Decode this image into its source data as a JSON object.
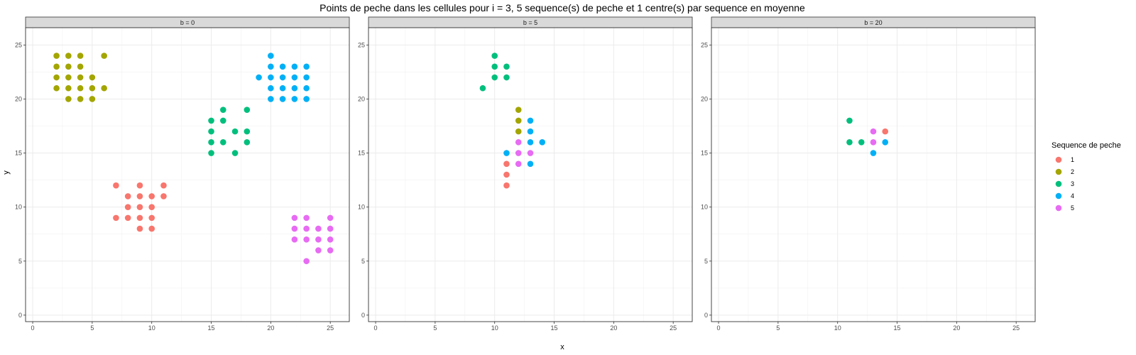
{
  "chart_data": {
    "type": "scatter",
    "title": "Points de peche dans les cellules pour i = 3, 5 sequence(s) de peche et 1 centre(s) par sequence en moyenne",
    "xlabel": "x",
    "ylabel": "y",
    "xlim": [
      -0.6,
      26.6
    ],
    "ylim": [
      -0.6,
      26.6
    ],
    "x_ticks": [
      0,
      5,
      10,
      15,
      20,
      25
    ],
    "y_ticks": [
      0,
      5,
      10,
      15,
      20,
      25
    ],
    "grid": true,
    "legend": {
      "title": "Sequence de peche",
      "position": "right",
      "entries": [
        {
          "label": "1",
          "color": "#F8766D"
        },
        {
          "label": "2",
          "color": "#A3A500"
        },
        {
          "label": "3",
          "color": "#00BF7D"
        },
        {
          "label": "4",
          "color": "#00B0F6"
        },
        {
          "label": "5",
          "color": "#E76BF3"
        }
      ]
    },
    "panels": [
      {
        "label": "b = 0",
        "series": [
          {
            "name": "1",
            "points": [
              [
                7,
                12
              ],
              [
                9,
                12
              ],
              [
                11,
                12
              ],
              [
                8,
                11
              ],
              [
                9,
                11
              ],
              [
                10,
                11
              ],
              [
                11,
                11
              ],
              [
                8,
                10
              ],
              [
                9,
                10
              ],
              [
                10,
                10
              ],
              [
                7,
                9
              ],
              [
                8,
                9
              ],
              [
                9,
                9
              ],
              [
                10,
                9
              ],
              [
                9,
                8
              ],
              [
                10,
                8
              ]
            ]
          },
          {
            "name": "2",
            "points": [
              [
                2,
                24
              ],
              [
                3,
                24
              ],
              [
                4,
                24
              ],
              [
                6,
                24
              ],
              [
                2,
                23
              ],
              [
                3,
                23
              ],
              [
                4,
                23
              ],
              [
                2,
                22
              ],
              [
                3,
                22
              ],
              [
                4,
                22
              ],
              [
                5,
                22
              ],
              [
                2,
                21
              ],
              [
                3,
                21
              ],
              [
                4,
                21
              ],
              [
                5,
                21
              ],
              [
                6,
                21
              ],
              [
                3,
                20
              ],
              [
                4,
                20
              ],
              [
                5,
                20
              ]
            ]
          },
          {
            "name": "3",
            "points": [
              [
                16,
                19
              ],
              [
                18,
                19
              ],
              [
                15,
                18
              ],
              [
                16,
                18
              ],
              [
                15,
                17
              ],
              [
                17,
                17
              ],
              [
                18,
                17
              ],
              [
                15,
                16
              ],
              [
                16,
                16
              ],
              [
                18,
                16
              ],
              [
                15,
                15
              ],
              [
                17,
                15
              ]
            ]
          },
          {
            "name": "4",
            "points": [
              [
                20,
                24
              ],
              [
                20,
                23
              ],
              [
                21,
                23
              ],
              [
                22,
                23
              ],
              [
                23,
                23
              ],
              [
                19,
                22
              ],
              [
                20,
                22
              ],
              [
                21,
                22
              ],
              [
                22,
                22
              ],
              [
                23,
                22
              ],
              [
                20,
                21
              ],
              [
                21,
                21
              ],
              [
                22,
                21
              ],
              [
                23,
                21
              ],
              [
                20,
                20
              ],
              [
                21,
                20
              ],
              [
                22,
                20
              ],
              [
                23,
                20
              ]
            ]
          },
          {
            "name": "5",
            "points": [
              [
                22,
                9
              ],
              [
                23,
                9
              ],
              [
                25,
                9
              ],
              [
                22,
                8
              ],
              [
                23,
                8
              ],
              [
                24,
                8
              ],
              [
                25,
                8
              ],
              [
                22,
                7
              ],
              [
                23,
                7
              ],
              [
                24,
                7
              ],
              [
                25,
                7
              ],
              [
                24,
                6
              ],
              [
                25,
                6
              ],
              [
                23,
                5
              ]
            ]
          }
        ]
      },
      {
        "label": "b = 5",
        "series": [
          {
            "name": "1",
            "points": [
              [
                11,
                14
              ],
              [
                11,
                13
              ],
              [
                11,
                12
              ]
            ]
          },
          {
            "name": "2",
            "points": [
              [
                12,
                19
              ],
              [
                12,
                18
              ],
              [
                12,
                17
              ]
            ]
          },
          {
            "name": "3",
            "points": [
              [
                10,
                24
              ],
              [
                10,
                23
              ],
              [
                11,
                23
              ],
              [
                10,
                22
              ],
              [
                11,
                22
              ],
              [
                9,
                21
              ]
            ]
          },
          {
            "name": "4",
            "points": [
              [
                13,
                18
              ],
              [
                13,
                17
              ],
              [
                13,
                16
              ],
              [
                14,
                16
              ],
              [
                11,
                15
              ],
              [
                13,
                14
              ]
            ]
          },
          {
            "name": "5",
            "points": [
              [
                12,
                16
              ],
              [
                12,
                15
              ],
              [
                13,
                15
              ],
              [
                12,
                14
              ]
            ]
          }
        ]
      },
      {
        "label": "b = 20",
        "series": [
          {
            "name": "1",
            "points": [
              [
                14,
                17
              ]
            ]
          },
          {
            "name": "2",
            "points": []
          },
          {
            "name": "3",
            "points": [
              [
                11,
                18
              ],
              [
                11,
                16
              ],
              [
                12,
                16
              ]
            ]
          },
          {
            "name": "4",
            "points": [
              [
                14,
                16
              ],
              [
                13,
                15
              ]
            ]
          },
          {
            "name": "5",
            "points": [
              [
                13,
                17
              ],
              [
                13,
                16
              ]
            ]
          }
        ]
      }
    ]
  }
}
